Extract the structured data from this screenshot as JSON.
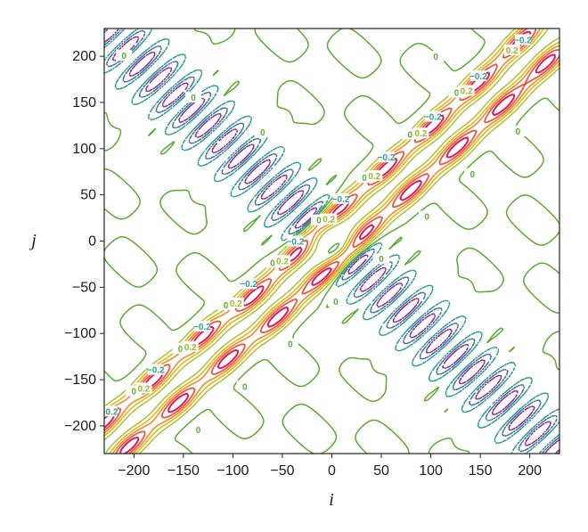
{
  "chart_data": {
    "type": "contour",
    "xlabel": "i",
    "ylabel": "j",
    "xlim": [
      -230,
      230
    ],
    "ylim": [
      -230,
      230
    ],
    "xticks": [
      -200,
      -150,
      -100,
      -50,
      0,
      50,
      100,
      150,
      200
    ],
    "yticks": [
      -200,
      -150,
      -100,
      -50,
      0,
      50,
      100,
      150,
      200
    ],
    "xtick_labels": [
      "−200",
      "−150",
      "−100",
      "−50",
      "0",
      "50",
      "100",
      "150",
      "200"
    ],
    "ytick_labels": [
      "−200",
      "−150",
      "−100",
      "−50",
      "0",
      "50",
      "100",
      "150",
      "200"
    ],
    "grid": false,
    "levels": [
      -0.4,
      -0.3,
      -0.2,
      -0.1,
      0,
      0.2,
      0.4,
      0.6,
      0.8,
      1.0
    ],
    "level_labels": {
      "zero": "0",
      "positive": "0.2",
      "negative": "−0.2"
    },
    "colors": {
      "zero": "#5aaa32",
      "pos_low": "#a8c23a",
      "pos_mid": "#e0b800",
      "pos_high": "#f08a30",
      "pos_top": "#d81b60",
      "neg_near": "#2e9e8e",
      "neg_mid": "#4a6fa5",
      "neg_deep": "#8e2e8e"
    },
    "positive_peaks": [
      [
        -230,
        -197
      ],
      [
        -205,
        -222
      ],
      [
        -180,
        -150
      ],
      [
        -155,
        -175
      ],
      [
        -130,
        -103
      ],
      [
        -105,
        -128
      ],
      [
        -80,
        -60
      ],
      [
        -55,
        -83
      ],
      [
        -35,
        -13
      ],
      [
        -10,
        -37
      ],
      [
        8,
        33
      ],
      [
        33,
        9
      ],
      [
        55,
        79
      ],
      [
        80,
        55
      ],
      [
        102,
        125
      ],
      [
        127,
        101
      ],
      [
        148,
        171
      ],
      [
        173,
        147
      ],
      [
        192,
        218
      ],
      [
        217,
        193
      ]
    ],
    "zero_label_positions": [
      [
        -200,
        -163
      ],
      [
        -153,
        -117
      ],
      [
        -107,
        -70
      ],
      [
        -60,
        -24
      ],
      [
        -13,
        22
      ],
      [
        33,
        68
      ],
      [
        79,
        115
      ],
      [
        126,
        160
      ],
      [
        -135,
        -205
      ],
      [
        -88,
        -158
      ],
      [
        -42,
        -112
      ],
      [
        4,
        -66
      ],
      [
        50,
        -20
      ],
      [
        96,
        26
      ],
      [
        142,
        72
      ],
      [
        188,
        118
      ],
      [
        -210,
        200
      ],
      [
        -140,
        155
      ],
      [
        -70,
        117
      ],
      [
        105,
        199
      ]
    ],
    "positive_label_positions": [
      [
        -190,
        -160
      ],
      [
        -143,
        -115
      ],
      [
        -97,
        -68
      ],
      [
        -50,
        -22
      ],
      [
        -3,
        23
      ],
      [
        43,
        70
      ],
      [
        90,
        116
      ],
      [
        136,
        162
      ],
      [
        182,
        206
      ]
    ],
    "negative_label_positions": [
      [
        -225,
        -185
      ],
      [
        -178,
        -140
      ],
      [
        -131,
        -93
      ],
      [
        -84,
        -47
      ],
      [
        -37,
        -1
      ],
      [
        9,
        45
      ],
      [
        55,
        90
      ],
      [
        102,
        134
      ],
      [
        148,
        178
      ],
      [
        193,
        217
      ]
    ]
  }
}
